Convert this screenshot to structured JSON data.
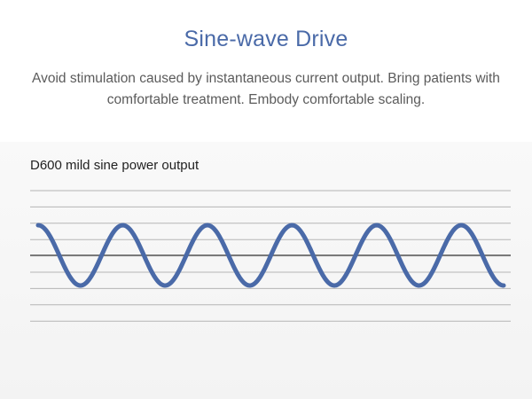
{
  "header": {
    "title": "Sine-wave Drive",
    "description": "Avoid stimulation caused by instantaneous current output. Bring patients with comfortable treatment. Embody comfortable scaling."
  },
  "diagram": {
    "label": "D600 mild sine power output",
    "wave_color": "#4a6aa8",
    "grid_color": "#b5b5b5",
    "axis_color": "#7a7a7a",
    "cycles": 5,
    "grid_line_count": 9
  }
}
